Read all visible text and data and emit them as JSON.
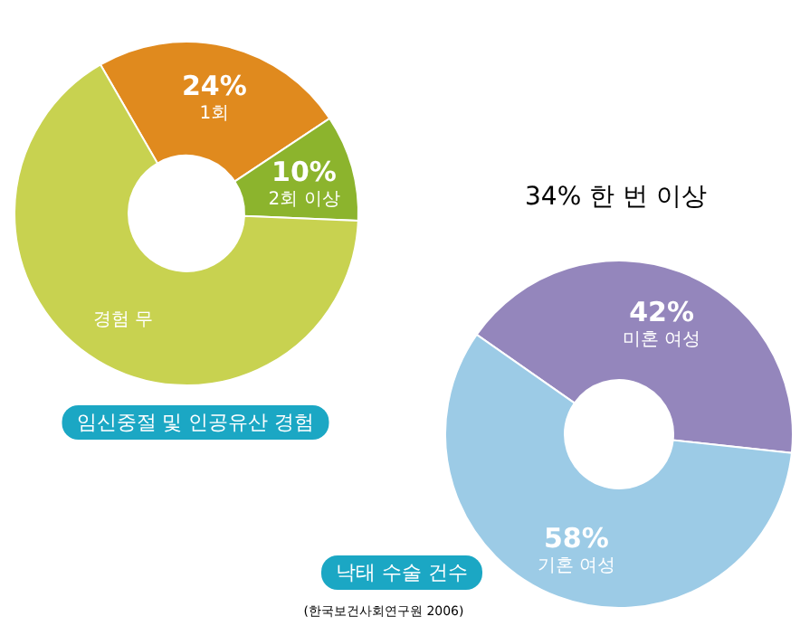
{
  "chart_data": [
    {
      "type": "donut",
      "title": "임신중절 및 인공유산 경험",
      "categories": [
        "1회",
        "2회 이상",
        "경험 무"
      ],
      "values": [
        24,
        10,
        66
      ],
      "colors": [
        "#e08a1e",
        "#8cb42d",
        "#c8d250"
      ],
      "value_labels": [
        "24%",
        "10%",
        null
      ],
      "annotations": [
        "34% 한 번 이상"
      ]
    },
    {
      "type": "donut",
      "title": "낙태 수술 건수",
      "categories": [
        "미혼 여성",
        "기혼 여성"
      ],
      "values": [
        42,
        58
      ],
      "colors": [
        "#9486bc",
        "#9ccbe6"
      ],
      "value_labels": [
        "42%",
        "58%"
      ],
      "annotations": [
        "(한국보건사회연구원 2006)"
      ]
    }
  ]
}
